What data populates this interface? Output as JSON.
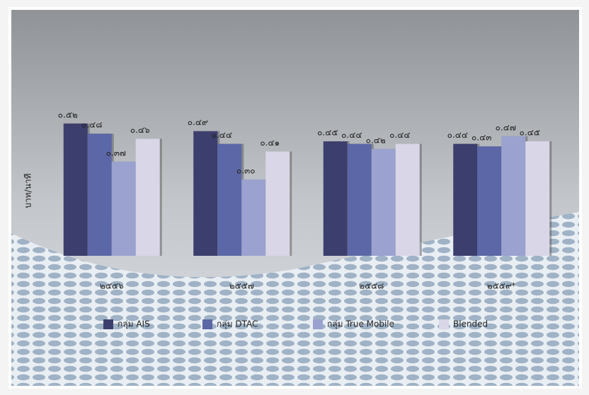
{
  "chart_data": {
    "type": "bar",
    "y_label": "บาท/นาที",
    "categories": [
      "๒๕๕๖",
      "๒๕๕๗",
      "๒๕๕๘",
      "๒๕๕๙*"
    ],
    "series": [
      {
        "name": "กลุ่ม AIS",
        "color": "#3c3f6d",
        "values": [
          0.52,
          0.49,
          0.45,
          0.44
        ],
        "value_labels": [
          "๐.๕๒",
          "๐.๔๙",
          "๐.๔๕",
          "๐.๔๔"
        ]
      },
      {
        "name": "กลุ่ม DTAC",
        "color": "#5b67a6",
        "values": [
          0.48,
          0.44,
          0.44,
          0.43
        ],
        "value_labels": [
          "๐.๔๘",
          "๐.๔๔",
          "๐.๔๔",
          "๐.๔๓"
        ]
      },
      {
        "name": "กลุ่ม True Mobile",
        "color": "#9ba2cf",
        "values": [
          0.37,
          0.3,
          0.42,
          0.47
        ],
        "value_labels": [
          "๐.๓๗",
          "๐.๓๐",
          "๐.๔๒",
          "๐.๔๗"
        ]
      },
      {
        "name": "Blended",
        "color": "#d9d6e8",
        "values": [
          0.46,
          0.41,
          0.44,
          0.45
        ],
        "value_labels": [
          "๐.๔๖",
          "๐.๔๑",
          "๐.๔๔",
          "๐.๔๕"
        ]
      }
    ],
    "ylim": [
      0,
      0.6
    ]
  }
}
